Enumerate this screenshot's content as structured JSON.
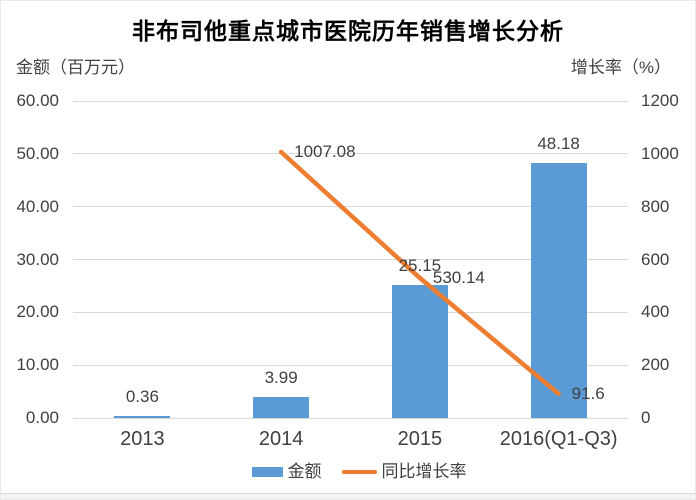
{
  "title": "非布司他重点城市医院历年销售增长分析",
  "left_axis_title": "金额（百万元）",
  "right_axis_title": "增长率（%）",
  "colors": {
    "bar": "#5B9BD5",
    "line": "#ED7D31",
    "grid": "#D9D9D9",
    "text": "#404040",
    "title_text": "#000000",
    "divider": "#D5DAE0"
  },
  "chart_data": {
    "type": "bar+line",
    "title": "非布司他重点城市医院历年销售增长分析",
    "categories": [
      "2013",
      "2014",
      "2015",
      "2016(Q1-Q3)"
    ],
    "series": [
      {
        "name": "金额",
        "type": "bar",
        "axis": "left",
        "values": [
          0.36,
          3.99,
          25.15,
          48.18
        ],
        "labels": [
          "0.36",
          "3.99",
          "25.15",
          "48.18"
        ]
      },
      {
        "name": "同比增长率",
        "type": "line",
        "axis": "right",
        "values": [
          null,
          1007.08,
          530.14,
          91.6
        ],
        "labels": [
          "",
          "1007.08",
          "530.14",
          "91.6"
        ]
      }
    ],
    "left_axis": {
      "title": "金额（百万元）",
      "min": 0,
      "max": 60,
      "step": 10,
      "tick_labels": [
        "0.00",
        "10.00",
        "20.00",
        "30.00",
        "40.00",
        "50.00",
        "60.00"
      ]
    },
    "right_axis": {
      "title": "增长率（%）",
      "min": 0,
      "max": 1200,
      "step": 200,
      "tick_labels": [
        "0",
        "200",
        "400",
        "600",
        "800",
        "1000",
        "1200"
      ]
    },
    "grid": "horizontal-only",
    "legend_position": "bottom"
  }
}
